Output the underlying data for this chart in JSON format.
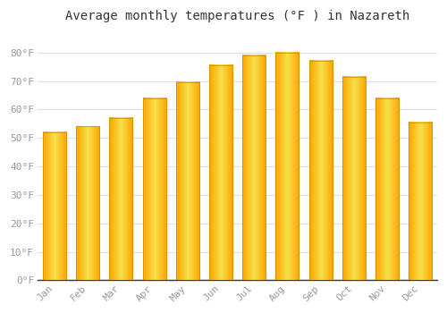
{
  "title": "Average monthly temperatures (°F ) in Nazareth",
  "months": [
    "Jan",
    "Feb",
    "Mar",
    "Apr",
    "May",
    "Jun",
    "Jul",
    "Aug",
    "Sep",
    "Oct",
    "Nov",
    "Dec"
  ],
  "values": [
    52,
    54,
    57,
    64,
    69.5,
    75.5,
    79,
    80,
    77,
    71.5,
    64,
    55.5
  ],
  "bar_color_center": "#FFD04A",
  "bar_color_edge": "#FFA500",
  "background_color": "#FFFFFF",
  "plot_bg_color": "#FFFFFF",
  "grid_color": "#E0E0E0",
  "ylim": [
    0,
    88
  ],
  "yticks": [
    0,
    10,
    20,
    30,
    40,
    50,
    60,
    70,
    80
  ],
  "ytick_labels": [
    "0°F",
    "10°F",
    "20°F",
    "30°F",
    "40°F",
    "50°F",
    "60°F",
    "70°F",
    "80°F"
  ],
  "title_fontsize": 10,
  "tick_fontsize": 8,
  "font_family": "monospace",
  "tick_color": "#999999",
  "spine_color": "#333333"
}
